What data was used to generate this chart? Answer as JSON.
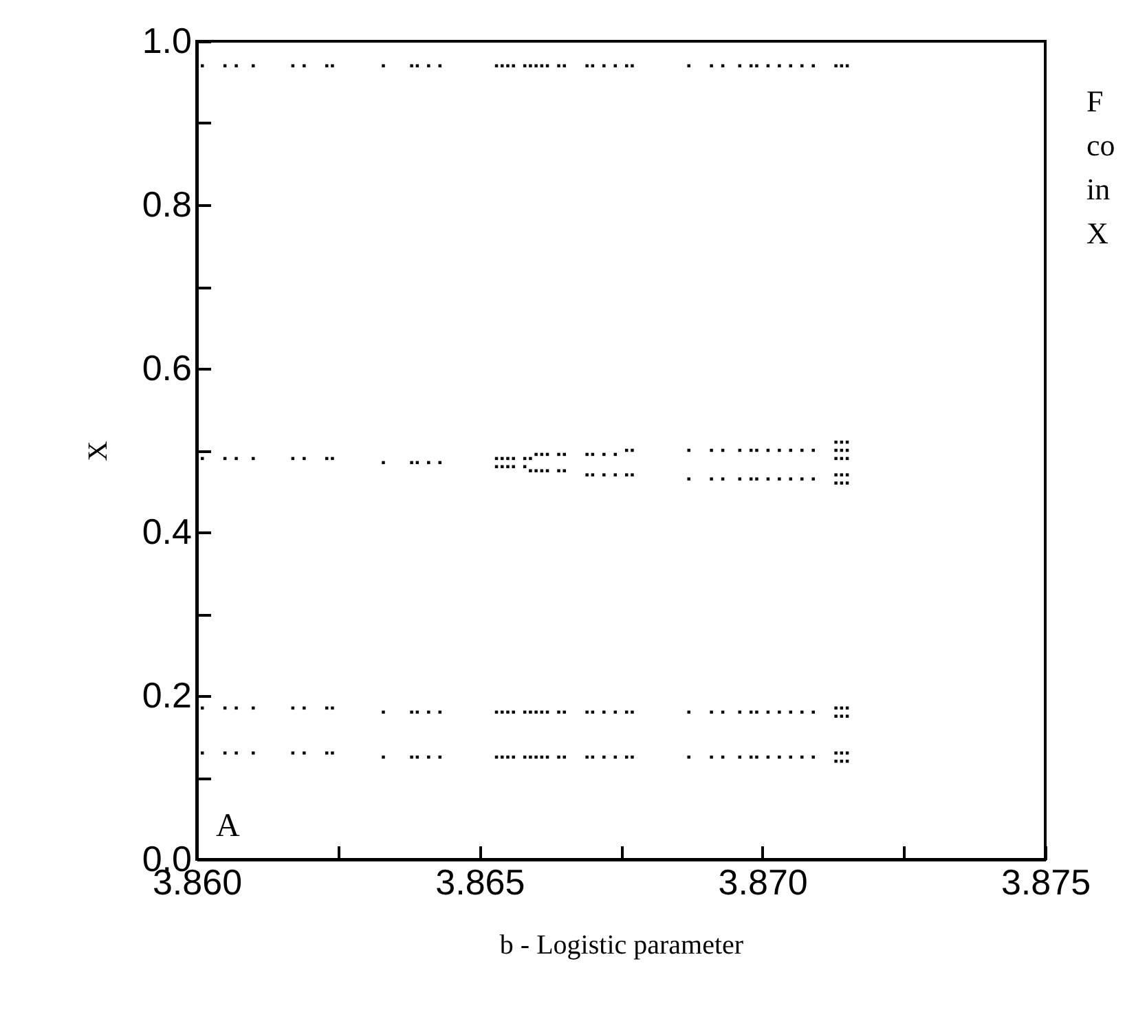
{
  "chart_data": {
    "type": "scatter",
    "xlabel": "b - Logistic parameter",
    "ylabel": "X",
    "annotations": [
      "A",
      "F",
      "co",
      "in",
      "X"
    ],
    "xlim": [
      3.86,
      3.875
    ],
    "xticks": [
      {
        "value": 3.86,
        "label": "3.860"
      },
      {
        "value": 3.8625,
        "label": null
      },
      {
        "value": 3.865,
        "label": "3.865"
      },
      {
        "value": 3.8675,
        "label": null
      },
      {
        "value": 3.87,
        "label": "3.870"
      },
      {
        "value": 3.8725,
        "label": null
      },
      {
        "value": 3.875,
        "label": "3.875"
      }
    ],
    "ylim": [
      0,
      1
    ],
    "yticks": [
      {
        "value": 0,
        "label": "0.0"
      },
      {
        "value": 0.1,
        "label": null
      },
      0.2,
      {
        "value": 0.3,
        "label": null
      },
      0.4,
      {
        "value": 0.5,
        "label": null
      },
      0.6,
      {
        "value": 0.7,
        "label": null
      },
      0.8,
      {
        "value": 0.9,
        "label": null
      },
      {
        "value": 1,
        "label": "1.0"
      }
    ],
    "marker": "square",
    "series": [
      {
        "color": "#000000",
        "x": [
          3.8601,
          3.8605,
          3.8607,
          3.861,
          3.8617,
          3.8619,
          3.8623,
          3.8624,
          3.8633,
          3.8638,
          3.8639,
          3.8641,
          3.8643,
          3.8653,
          3.8654,
          3.8655,
          3.8656,
          3.8658,
          3.8659,
          3.866,
          3.8661,
          3.8662,
          3.8664,
          3.8665,
          3.8669,
          3.867,
          3.8672,
          3.8674,
          3.8676,
          3.8677,
          3.8687,
          3.8691,
          3.8693,
          3.8696,
          3.8698,
          3.8699,
          3.8701,
          3.8703,
          3.8705,
          3.8707,
          3.8709,
          3.8713,
          3.8714,
          3.8715
        ],
        "values": [
          0.97,
          0.97,
          0.97,
          0.97,
          0.97,
          0.97,
          0.97,
          0.97,
          0.97,
          0.97,
          0.97,
          0.97,
          0.97,
          0.97,
          0.97,
          0.97,
          0.97,
          0.97,
          0.97,
          0.97,
          0.97,
          0.97,
          0.97,
          0.97,
          0.97,
          0.97,
          0.97,
          0.97,
          0.97,
          0.97,
          0.97,
          0.97,
          0.97,
          0.97,
          0.97,
          0.97,
          0.97,
          0.97,
          0.97,
          0.97,
          0.97,
          0.97,
          0.97,
          0.97
        ]
      },
      {
        "color": "#000000",
        "x": [
          3.8601,
          3.8605,
          3.8607,
          3.861,
          3.8617,
          3.8619,
          3.8623,
          3.8624,
          3.8633,
          3.8638,
          3.8639,
          3.8641,
          3.8643,
          3.8653,
          3.8654,
          3.8655,
          3.8656,
          3.8658,
          3.8659,
          3.866,
          3.8661,
          3.8662,
          3.8664,
          3.8665,
          3.8669,
          3.867,
          3.8672,
          3.8674,
          3.8676,
          3.8677,
          3.8687,
          3.8691,
          3.8693,
          3.8696,
          3.8698,
          3.8699,
          3.8701,
          3.8703,
          3.8705,
          3.8707,
          3.8709,
          3.8713,
          3.8713,
          3.8713,
          3.8714,
          3.8714,
          3.8714,
          3.8715,
          3.8715,
          3.8715
        ],
        "values": [
          0.49,
          0.49,
          0.49,
          0.49,
          0.49,
          0.49,
          0.49,
          0.49,
          0.485,
          0.485,
          0.485,
          0.485,
          0.485,
          0.49,
          0.49,
          0.49,
          0.49,
          0.49,
          0.49,
          0.495,
          0.495,
          0.495,
          0.495,
          0.495,
          0.495,
          0.495,
          0.495,
          0.495,
          0.5,
          0.5,
          0.5,
          0.5,
          0.5,
          0.5,
          0.5,
          0.5,
          0.5,
          0.5,
          0.5,
          0.5,
          0.5,
          0.49,
          0.5,
          0.51,
          0.49,
          0.5,
          0.51,
          0.49,
          0.5,
          0.51
        ]
      },
      {
        "color": "#000000",
        "x": [
          3.8653,
          3.8654,
          3.8655,
          3.8656,
          3.8658,
          3.8659,
          3.866,
          3.8661,
          3.8662,
          3.8664,
          3.8665,
          3.8669,
          3.867,
          3.8672,
          3.8674,
          3.8676,
          3.8677,
          3.8687,
          3.8691,
          3.8693,
          3.8696,
          3.8698,
          3.8699,
          3.8701,
          3.8703,
          3.8705,
          3.8707,
          3.8709,
          3.8713,
          3.8713,
          3.8714,
          3.8714,
          3.8715,
          3.8715
        ],
        "values": [
          0.48,
          0.48,
          0.48,
          0.48,
          0.48,
          0.475,
          0.475,
          0.475,
          0.475,
          0.475,
          0.475,
          0.47,
          0.47,
          0.47,
          0.47,
          0.47,
          0.47,
          0.465,
          0.465,
          0.465,
          0.465,
          0.465,
          0.465,
          0.465,
          0.465,
          0.465,
          0.465,
          0.465,
          0.46,
          0.47,
          0.46,
          0.47,
          0.46,
          0.47
        ]
      },
      {
        "color": "#000000",
        "x": [
          3.8601,
          3.8605,
          3.8607,
          3.861,
          3.8617,
          3.8619,
          3.8623,
          3.8624,
          3.8633,
          3.8638,
          3.8639,
          3.8641,
          3.8643,
          3.8653,
          3.8654,
          3.8655,
          3.8656,
          3.8658,
          3.8659,
          3.866,
          3.8661,
          3.8662,
          3.8664,
          3.8665,
          3.8669,
          3.867,
          3.8672,
          3.8674,
          3.8676,
          3.8677,
          3.8687,
          3.8691,
          3.8693,
          3.8696,
          3.8698,
          3.8699,
          3.8701,
          3.8703,
          3.8705,
          3.8707,
          3.8709,
          3.8713,
          3.8713,
          3.8714,
          3.8714,
          3.8715,
          3.8715
        ],
        "values": [
          0.185,
          0.185,
          0.185,
          0.185,
          0.185,
          0.185,
          0.185,
          0.185,
          0.18,
          0.18,
          0.18,
          0.18,
          0.18,
          0.18,
          0.18,
          0.18,
          0.18,
          0.18,
          0.18,
          0.18,
          0.18,
          0.18,
          0.18,
          0.18,
          0.18,
          0.18,
          0.18,
          0.18,
          0.18,
          0.18,
          0.18,
          0.18,
          0.18,
          0.18,
          0.18,
          0.18,
          0.18,
          0.18,
          0.18,
          0.18,
          0.18,
          0.175,
          0.185,
          0.175,
          0.185,
          0.175,
          0.185
        ]
      },
      {
        "color": "#000000",
        "x": [
          3.8601,
          3.8605,
          3.8607,
          3.861,
          3.8617,
          3.8619,
          3.8623,
          3.8624,
          3.8633,
          3.8638,
          3.8639,
          3.8641,
          3.8643,
          3.8653,
          3.8654,
          3.8655,
          3.8656,
          3.8658,
          3.8659,
          3.866,
          3.8661,
          3.8662,
          3.8664,
          3.8665,
          3.8669,
          3.867,
          3.8672,
          3.8674,
          3.8676,
          3.8677,
          3.8687,
          3.8691,
          3.8693,
          3.8696,
          3.8698,
          3.8699,
          3.8701,
          3.8703,
          3.8705,
          3.8707,
          3.8709,
          3.8713,
          3.8713,
          3.8714,
          3.8714,
          3.8715,
          3.8715
        ],
        "values": [
          0.13,
          0.13,
          0.13,
          0.13,
          0.13,
          0.13,
          0.13,
          0.13,
          0.125,
          0.125,
          0.125,
          0.125,
          0.125,
          0.125,
          0.125,
          0.125,
          0.125,
          0.125,
          0.125,
          0.125,
          0.125,
          0.125,
          0.125,
          0.125,
          0.125,
          0.125,
          0.125,
          0.125,
          0.125,
          0.125,
          0.125,
          0.125,
          0.125,
          0.125,
          0.125,
          0.125,
          0.125,
          0.125,
          0.125,
          0.125,
          0.125,
          0.12,
          0.13,
          0.12,
          0.13,
          0.12,
          0.13
        ]
      }
    ]
  }
}
